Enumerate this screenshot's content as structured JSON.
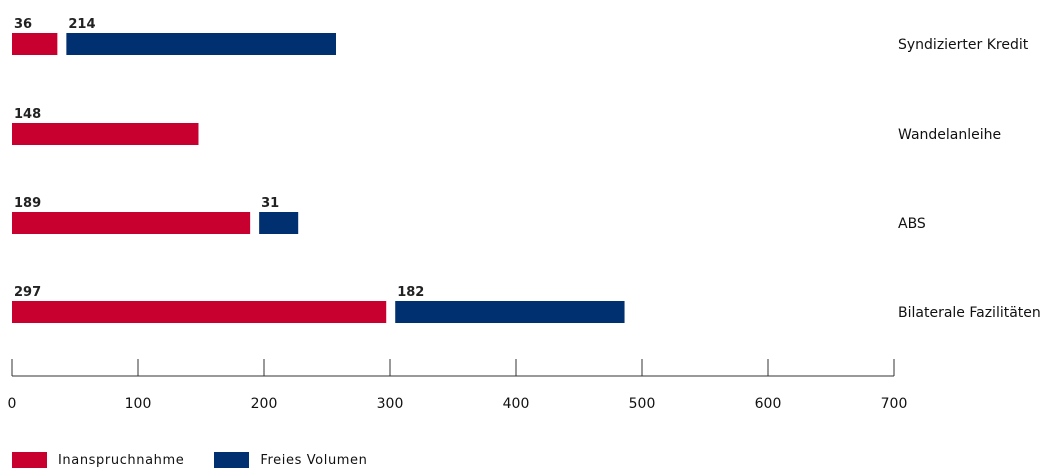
{
  "chart_data": {
    "type": "bar",
    "orientation": "horizontal",
    "stacked_with_gap": true,
    "categories": [
      "Syndizierter Kredit",
      "Wandelanleihe",
      "ABS",
      "Bilaterale Fazilitäten"
    ],
    "series": [
      {
        "name": "Inanspruchnahme",
        "color": "#c8002f",
        "values": [
          36,
          148,
          189,
          297
        ]
      },
      {
        "name": "Freies Volumen",
        "color": "#003070",
        "values": [
          214,
          null,
          31,
          182
        ]
      }
    ],
    "xlim": [
      0,
      700
    ],
    "xticks": [
      "0",
      "100",
      "200",
      "300",
      "400",
      "500",
      "600",
      "700"
    ],
    "grid": false,
    "legend_position": "bottom-left"
  }
}
